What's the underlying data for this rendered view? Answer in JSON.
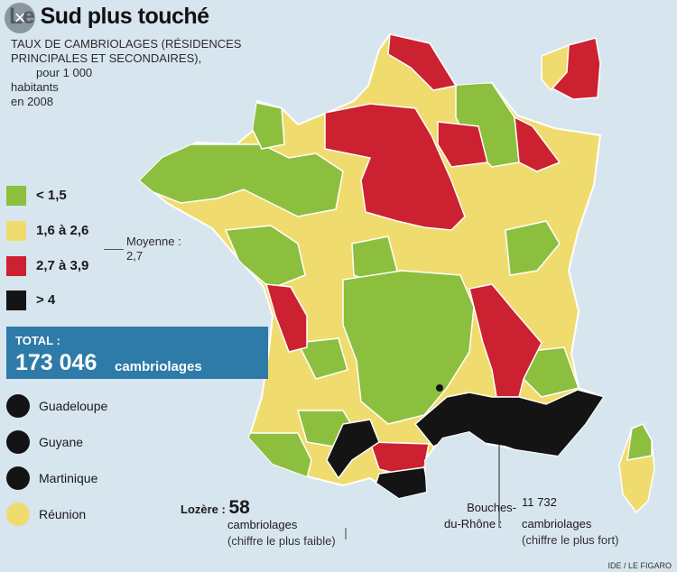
{
  "title": "Le Sud plus touché",
  "subtitle": {
    "line1": "TAUX DE CAMBRIOLAGES (RÉSIDENCES",
    "line2": "PRINCIPALES ET SECONDAIRES),",
    "line3": "pour 1 000",
    "line4": "habitants",
    "line5": "en 2008"
  },
  "colors": {
    "green": "#8cbf3e",
    "yellow": "#f0dc6e",
    "red": "#cc2131",
    "black": "#141414",
    "blue_box": "#2e7aa8",
    "sea": "#d7e5ef"
  },
  "legend": [
    {
      "label": "< 1,5",
      "color": "#8cbf3e"
    },
    {
      "label": "1,6 à 2,6",
      "color": "#f0dc6e"
    },
    {
      "label": "2,7 à 3,9",
      "color": "#cc2131"
    },
    {
      "label": "> 4",
      "color": "#141414"
    }
  ],
  "moyenne": {
    "label": "Moyenne :",
    "value": "2,7"
  },
  "total": {
    "label": "TOTAL :",
    "value": "173 046",
    "unit": "cambriolages"
  },
  "overseas": [
    {
      "name": "Guadeloupe",
      "color": "#141414"
    },
    {
      "name": "Guyane",
      "color": "#141414"
    },
    {
      "name": "Martinique",
      "color": "#141414"
    },
    {
      "name": "Réunion",
      "color": "#f0dc6e"
    }
  ],
  "lozere": {
    "name": "Lozère :",
    "value": "58",
    "unit": "cambriolages",
    "note": "(chiffre le plus faible)"
  },
  "bouches": {
    "name_line1": "Bouches-",
    "name_line2": "du-Rhône :",
    "value": "11 732",
    "unit": "cambriolages",
    "note": "(chiffre le plus fort)"
  },
  "credit": "IDE / LE FIGARO",
  "close_icon": "×"
}
